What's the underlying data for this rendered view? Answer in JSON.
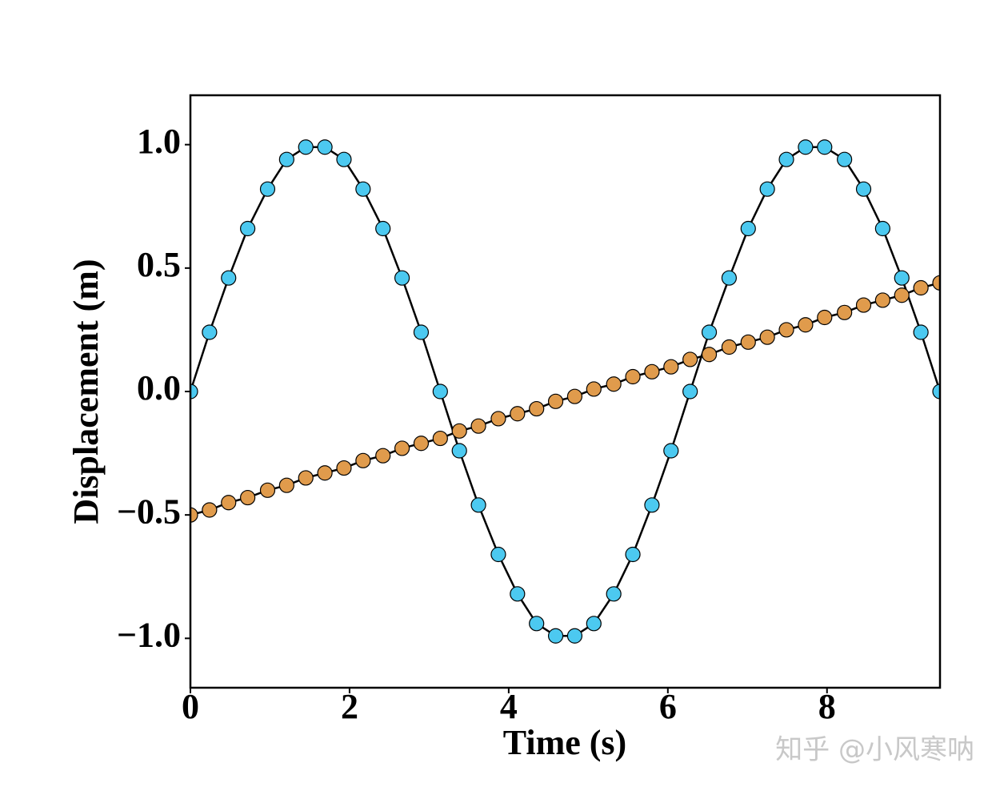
{
  "chart_data": {
    "type": "line",
    "xlabel": "Time (s)",
    "ylabel": "Displacement (m)",
    "x": [
      0.0,
      0.24,
      0.48,
      0.72,
      0.97,
      1.21,
      1.45,
      1.69,
      1.93,
      2.17,
      2.42,
      2.66,
      2.9,
      3.14,
      3.38,
      3.62,
      3.87,
      4.11,
      4.35,
      4.59,
      4.83,
      5.07,
      5.32,
      5.56,
      5.8,
      6.04,
      6.28,
      6.52,
      6.77,
      7.01,
      7.25,
      7.49,
      7.73,
      7.97,
      8.22,
      8.46,
      8.7,
      8.94,
      9.18,
      9.42
    ],
    "series": [
      {
        "color": "#4cc9f0",
        "line_color": "#000000",
        "values": [
          0,
          0.24,
          0.46,
          0.66,
          0.82,
          0.94,
          0.99,
          0.99,
          0.94,
          0.82,
          0.66,
          0.46,
          0.24,
          0,
          -0.24,
          -0.46,
          -0.66,
          -0.82,
          -0.94,
          -0.99,
          -0.99,
          -0.94,
          -0.82,
          -0.66,
          -0.46,
          -0.24,
          0,
          0.24,
          0.46,
          0.66,
          0.82,
          0.94,
          0.99,
          0.99,
          0.94,
          0.82,
          0.66,
          0.46,
          0.24,
          0
        ]
      },
      {
        "color": "#e09b4c",
        "line_color": "#000000",
        "values": [
          -0.5,
          -0.48,
          -0.45,
          -0.43,
          -0.4,
          -0.38,
          -0.35,
          -0.33,
          -0.31,
          -0.28,
          -0.26,
          -0.23,
          -0.21,
          -0.19,
          -0.16,
          -0.14,
          -0.11,
          -0.09,
          -0.07,
          -0.04,
          -0.02,
          0.01,
          0.03,
          0.06,
          0.08,
          0.1,
          0.13,
          0.15,
          0.18,
          0.2,
          0.22,
          0.25,
          0.27,
          0.3,
          0.32,
          0.35,
          0.37,
          0.39,
          0.42,
          0.44
        ]
      }
    ],
    "xlim": [
      0,
      9.42
    ],
    "ylim": [
      -1.2,
      1.2
    ],
    "xticks": [
      0,
      2,
      4,
      6,
      8
    ],
    "yticks": [
      {
        "value": -1.0,
        "label": "−1.0"
      },
      {
        "value": -0.5,
        "label": "−0.5"
      },
      {
        "value": 0.0,
        "label": "0.0"
      },
      {
        "value": 0.5,
        "label": "0.5"
      },
      {
        "value": 1.0,
        "label": "1.0"
      }
    ],
    "grid": false
  },
  "watermark": "知乎 @小风寒呐"
}
